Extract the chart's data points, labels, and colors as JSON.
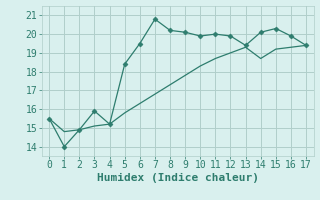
{
  "line1_x": [
    0,
    1,
    2,
    3,
    4,
    5,
    6,
    7,
    8,
    9,
    10,
    11,
    12,
    13,
    14,
    15,
    16,
    17
  ],
  "line1_y": [
    15.5,
    14.0,
    14.9,
    15.9,
    15.2,
    18.4,
    19.5,
    20.8,
    20.2,
    20.1,
    19.9,
    20.0,
    19.9,
    19.4,
    20.1,
    20.3,
    19.9,
    19.4
  ],
  "line2_x": [
    0,
    1,
    2,
    3,
    4,
    5,
    6,
    7,
    8,
    9,
    10,
    11,
    12,
    13,
    14,
    15,
    16,
    17
  ],
  "line2_y": [
    15.5,
    14.8,
    14.9,
    15.1,
    15.2,
    15.8,
    16.3,
    16.8,
    17.3,
    17.8,
    18.3,
    18.7,
    19.0,
    19.3,
    18.7,
    19.2,
    19.3,
    19.4
  ],
  "line_color": "#2e7d6e",
  "bg_color": "#d9f0ee",
  "grid_color": "#b0ceca",
  "xlabel": "Humidex (Indice chaleur)",
  "ylim": [
    13.5,
    21.5
  ],
  "xlim": [
    -0.5,
    17.5
  ],
  "yticks": [
    14,
    15,
    16,
    17,
    18,
    19,
    20,
    21
  ],
  "xticks": [
    0,
    1,
    2,
    3,
    4,
    5,
    6,
    7,
    8,
    9,
    10,
    11,
    12,
    13,
    14,
    15,
    16,
    17
  ],
  "tick_fontsize": 7,
  "xlabel_fontsize": 8
}
